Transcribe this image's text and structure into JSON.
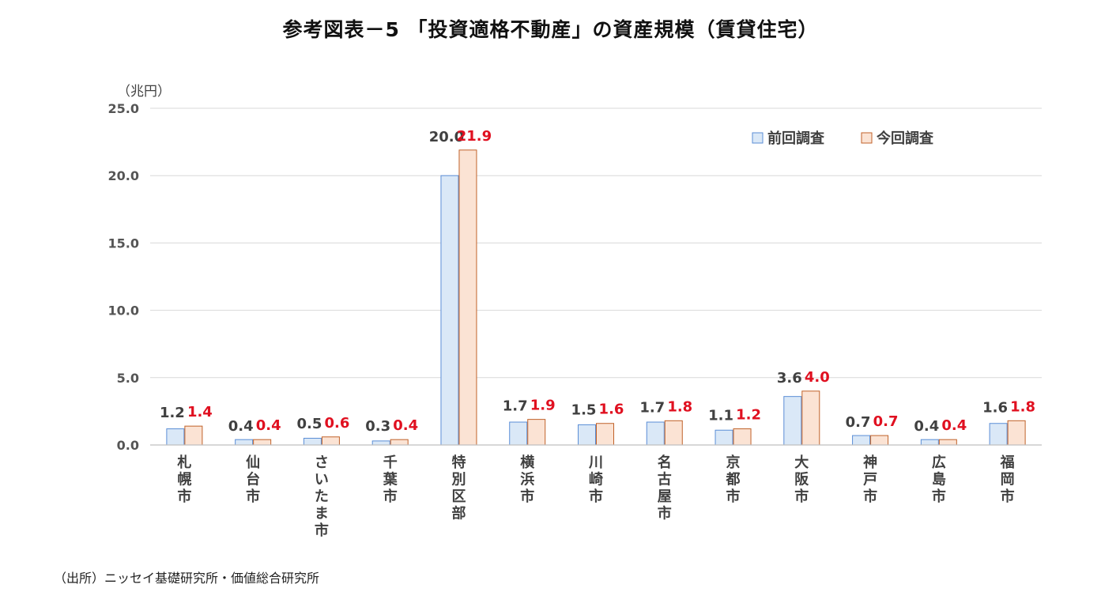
{
  "title": "参考図表－5 「投資適格不動産」の資産規模（賃貸住宅）",
  "source": "（出所）ニッセイ基礎研究所・価値総合研究所",
  "colors": {
    "prev_fill": "#dae8f7",
    "prev_stroke": "#5b8ed6",
    "curr_fill": "#fbe3d4",
    "curr_stroke": "#c0622a",
    "curr_label": "#e01020",
    "grid": "#d9d9d9"
  },
  "chart_data": {
    "type": "bar",
    "unit_label": "（兆円）",
    "categories": [
      "札幌市",
      "仙台市",
      "さいたま市",
      "千葉市",
      "特別区部",
      "横浜市",
      "川崎市",
      "名古屋市",
      "京都市",
      "大阪市",
      "神戸市",
      "広島市",
      "福岡市"
    ],
    "series": [
      {
        "name": "前回調査",
        "values": [
          1.2,
          0.4,
          0.5,
          0.3,
          20.0,
          1.7,
          1.5,
          1.7,
          1.1,
          3.6,
          0.7,
          0.4,
          1.6
        ]
      },
      {
        "name": "今回調査",
        "values": [
          1.4,
          0.4,
          0.6,
          0.4,
          21.9,
          1.9,
          1.6,
          1.8,
          1.2,
          4.0,
          0.7,
          0.4,
          1.8
        ]
      }
    ],
    "yticks": [
      "0.0",
      "5.0",
      "10.0",
      "15.0",
      "20.0",
      "25.0"
    ],
    "ylim": [
      0,
      25
    ],
    "grid": true,
    "legend_position": "top-right"
  }
}
